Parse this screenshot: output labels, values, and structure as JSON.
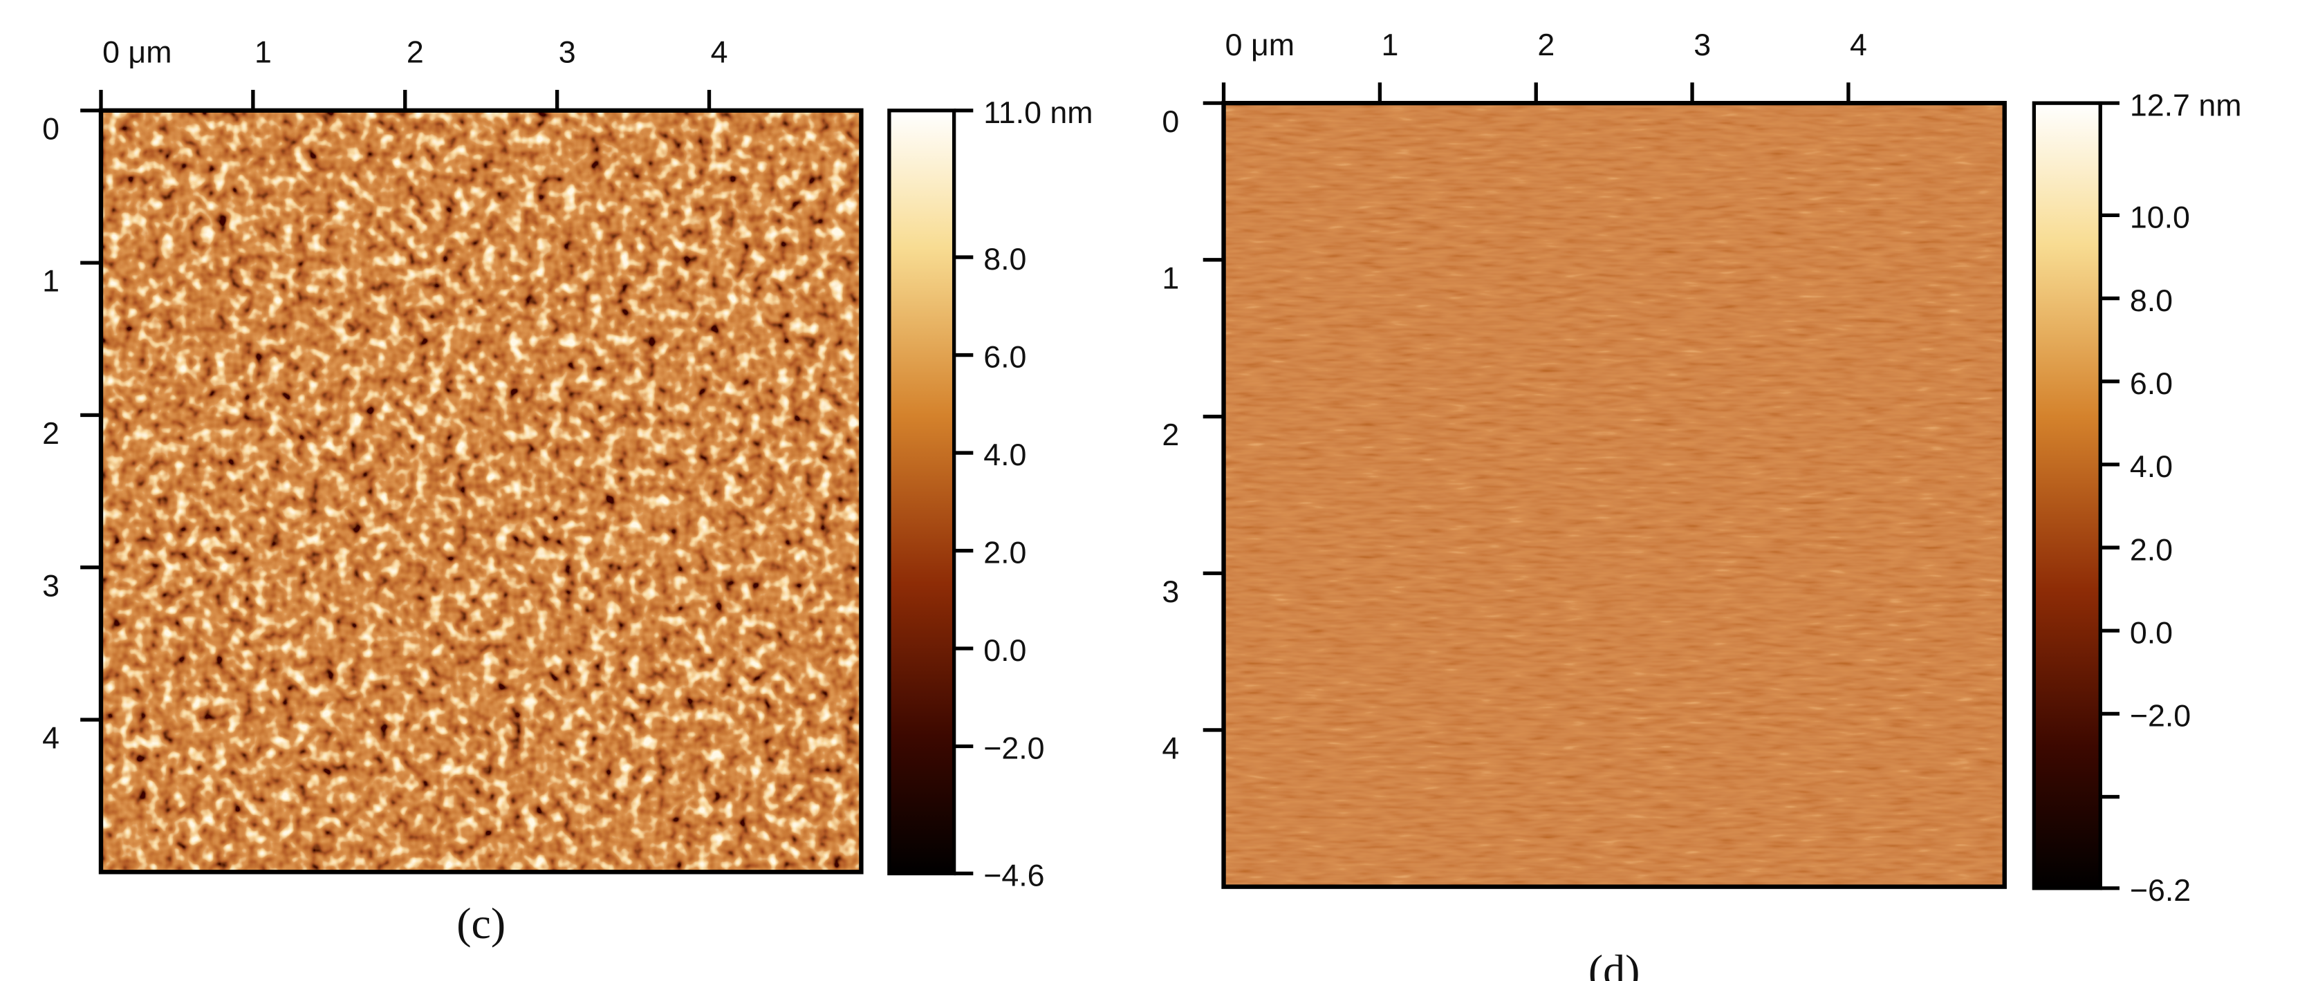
{
  "chart_data": [
    {
      "type": "image",
      "title": "(c)",
      "xlim": [
        0,
        5
      ],
      "xticks": [
        {
          "value": 0,
          "label": "0 μm"
        },
        1,
        2,
        3,
        4
      ],
      "ylim": [
        0,
        5
      ],
      "yticks": [
        0,
        1,
        2,
        3,
        4
      ],
      "y_inverted": true,
      "zlim": [
        -4.6,
        11.0
      ],
      "zticks": [
        {
          "value": 11.0,
          "label": "11.0 nm"
        },
        {
          "value": 8,
          "label": "8.0"
        },
        {
          "value": 6,
          "label": "6.0"
        },
        {
          "value": 4,
          "label": "4.0"
        },
        {
          "value": 2,
          "label": "2.0"
        },
        {
          "value": 0,
          "label": "0.0"
        },
        {
          "value": -2,
          "label": "−2.0"
        },
        {
          "value": -4.6,
          "label": "−4.6"
        }
      ]
    },
    {
      "type": "image",
      "title": "(d)",
      "xlim": [
        0,
        5
      ],
      "xticks": [
        {
          "value": 0,
          "label": "0 μm"
        },
        1,
        2,
        3,
        4
      ],
      "ylim": [
        0,
        5
      ],
      "yticks": [
        0,
        1,
        2,
        3,
        4
      ],
      "y_inverted": true,
      "zlim": [
        -6.2,
        12.7
      ],
      "zticks": [
        {
          "value": 12.7,
          "label": "12.7 nm"
        },
        {
          "value": 10,
          "label": "10.0"
        },
        {
          "value": 8,
          "label": "8.0"
        },
        {
          "value": 6,
          "label": "6.0"
        },
        {
          "value": 4,
          "label": "4.0"
        },
        {
          "value": 2,
          "label": "2.0"
        },
        {
          "value": 0,
          "label": "0.0"
        },
        {
          "value": -2,
          "label": "−2.0"
        },
        {
          "value": -4,
          "label": null
        },
        {
          "value": -6.2,
          "label": "−6.2"
        }
      ]
    }
  ]
}
